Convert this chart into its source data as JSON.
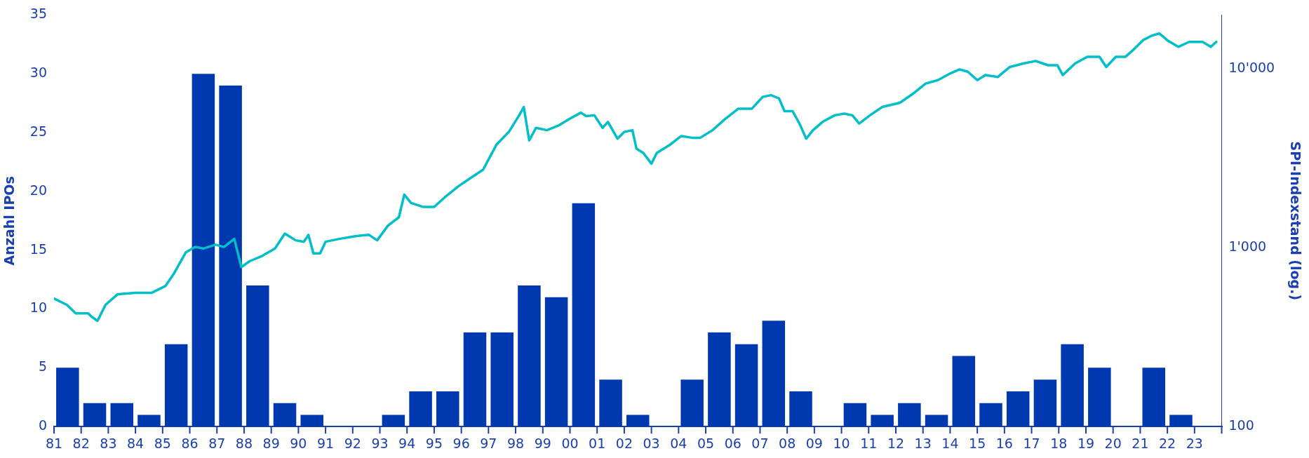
{
  "chart_data": {
    "type": "bar",
    "ylabel": "Anzahl IPOs",
    "y2label": "SPI-Indexstand (log.)",
    "x": [
      1981.5,
      1982.5,
      1983.5,
      1984.5,
      1985.5,
      1986.5,
      1987.5,
      1988.5,
      1989.5,
      1990.5,
      1991.5,
      1992.5,
      1993.5,
      1994.5,
      1995.5,
      1996.5,
      1997.5,
      1998.5,
      1999.5,
      2000.5,
      2001.5,
      2002.5,
      2003.5,
      2004.5,
      2005.5,
      2006.5,
      2007.5,
      2008.5,
      2009.5,
      2010.5,
      2011.5,
      2012.5,
      2013.5,
      2014.5,
      2015.5,
      2016.5,
      2017.5,
      2018.5,
      2019.5,
      2020.5,
      2021.5,
      2022.5,
      2023.5
    ],
    "xlim": [
      1981,
      2024
    ],
    "xticks": [
      {
        "value": 1981,
        "label": "81"
      },
      {
        "value": 1982,
        "label": "82"
      },
      {
        "value": 1983,
        "label": "83"
      },
      {
        "value": 1984,
        "label": "84"
      },
      {
        "value": 1985,
        "label": "85"
      },
      {
        "value": 1986,
        "label": "86"
      },
      {
        "value": 1987,
        "label": "87"
      },
      {
        "value": 1988,
        "label": "88"
      },
      {
        "value": 1989,
        "label": "89"
      },
      {
        "value": 1990,
        "label": "90"
      },
      {
        "value": 1991,
        "label": "91"
      },
      {
        "value": 1992,
        "label": "92"
      },
      {
        "value": 1993,
        "label": "93"
      },
      {
        "value": 1994,
        "label": "94"
      },
      {
        "value": 1995,
        "label": "95"
      },
      {
        "value": 1996,
        "label": "96"
      },
      {
        "value": 1997,
        "label": "97"
      },
      {
        "value": 1998,
        "label": "98"
      },
      {
        "value": 1999,
        "label": "99"
      },
      {
        "value": 2000,
        "label": "00"
      },
      {
        "value": 2001,
        "label": "01"
      },
      {
        "value": 2002,
        "label": "02"
      },
      {
        "value": 2003,
        "label": "03"
      },
      {
        "value": 2004,
        "label": "04"
      },
      {
        "value": 2005,
        "label": "05"
      },
      {
        "value": 2006,
        "label": "06"
      },
      {
        "value": 2007,
        "label": "07"
      },
      {
        "value": 2008,
        "label": "08"
      },
      {
        "value": 2009,
        "label": "09"
      },
      {
        "value": 2010,
        "label": "10"
      },
      {
        "value": 2011,
        "label": "11"
      },
      {
        "value": 2012,
        "label": "12"
      },
      {
        "value": 2013,
        "label": "13"
      },
      {
        "value": 2014,
        "label": "14"
      },
      {
        "value": 2015,
        "label": "15"
      },
      {
        "value": 2016,
        "label": "16"
      },
      {
        "value": 2017,
        "label": "17"
      },
      {
        "value": 2018,
        "label": "18"
      },
      {
        "value": 2019,
        "label": "19"
      },
      {
        "value": 2020,
        "label": "20"
      },
      {
        "value": 2021,
        "label": "21"
      },
      {
        "value": 2022,
        "label": "22"
      },
      {
        "value": 2023,
        "label": "23"
      },
      {
        "value": 2024,
        "label": null
      }
    ],
    "ylim": [
      0,
      35
    ],
    "yticks": [
      0,
      5,
      10,
      15,
      20,
      25,
      30,
      35
    ],
    "y2lim": [
      100,
      20000
    ],
    "y2ticks": [
      {
        "value": 100,
        "label": "100"
      },
      {
        "value": 1000,
        "label": "1'000"
      },
      {
        "value": 10000,
        "label": "10'000"
      }
    ],
    "log": "y2",
    "grid": false,
    "legend": false,
    "series": [
      {
        "color": "#0038b0",
        "values": [
          5,
          2,
          2,
          1,
          7,
          30,
          29,
          12,
          2,
          1,
          0,
          0,
          1,
          3,
          3,
          8,
          8,
          12,
          11,
          19,
          4,
          1,
          0,
          4,
          8,
          7,
          9,
          3,
          0,
          2,
          1,
          2,
          1,
          6,
          2,
          3,
          4,
          7,
          5,
          0,
          5,
          1,
          0
        ]
      },
      {
        "type": "line",
        "axis": "y2",
        "color": "#00bfc8",
        "marker": "none",
        "line_style": "solid",
        "x": [
          1981.0,
          1981.47,
          1981.8,
          1982.25,
          1982.4,
          1982.6,
          1982.9,
          1983.35,
          1984.0,
          1984.6,
          1985.1,
          1985.4,
          1985.85,
          1986.2,
          1986.5,
          1986.95,
          1987.26,
          1987.64,
          1987.9,
          1988.2,
          1988.67,
          1989.14,
          1989.5,
          1989.9,
          1990.2,
          1990.37,
          1990.55,
          1990.8,
          1991.0,
          1991.5,
          1992.1,
          1992.6,
          1992.9,
          1993.3,
          1993.7,
          1993.9,
          1994.15,
          1994.6,
          1995.0,
          1995.4,
          1995.9,
          1996.35,
          1996.8,
          1997.3,
          1997.75,
          1998.13,
          1998.3,
          1998.5,
          1998.75,
          1999.15,
          1999.6,
          1999.95,
          2000.4,
          2000.6,
          2000.9,
          2001.2,
          2001.4,
          2001.75,
          2002.0,
          2002.3,
          2002.45,
          2002.7,
          2003.0,
          2003.2,
          2003.7,
          2004.1,
          2004.5,
          2004.8,
          2005.25,
          2005.7,
          2006.2,
          2006.7,
          2007.1,
          2007.4,
          2007.7,
          2007.9,
          2008.2,
          2008.45,
          2008.7,
          2008.95,
          2009.3,
          2009.75,
          2010.1,
          2010.4,
          2010.65,
          2011.05,
          2011.5,
          2012.15,
          2012.6,
          2013.1,
          2013.55,
          2014.0,
          2014.35,
          2014.65,
          2015.0,
          2015.3,
          2015.75,
          2016.2,
          2016.7,
          2017.15,
          2017.6,
          2017.95,
          2018.15,
          2018.6,
          2019.05,
          2019.5,
          2019.75,
          2020.1,
          2020.45,
          2020.7,
          2021.1,
          2021.4,
          2021.7,
          2022.0,
          2022.4,
          2022.8,
          2023.3,
          2023.6,
          2023.8
        ],
        "values": [
          520,
          480,
          430,
          430,
          410,
          390,
          480,
          550,
          560,
          560,
          610,
          710,
          940,
          1010,
          990,
          1040,
          1010,
          1120,
          780,
          840,
          900,
          990,
          1200,
          1100,
          1080,
          1180,
          930,
          930,
          1080,
          1120,
          1160,
          1180,
          1100,
          1330,
          1480,
          1980,
          1780,
          1690,
          1690,
          1920,
          2210,
          2460,
          2730,
          3780,
          4440,
          5500,
          6120,
          3980,
          4680,
          4540,
          4840,
          5220,
          5690,
          5440,
          5500,
          4680,
          5050,
          4070,
          4440,
          4540,
          3580,
          3390,
          2950,
          3390,
          3780,
          4210,
          4120,
          4120,
          4540,
          5220,
          5990,
          5990,
          6970,
          7130,
          6830,
          5800,
          5800,
          4950,
          4070,
          4540,
          5050,
          5500,
          5620,
          5500,
          4950,
          5500,
          6120,
          6460,
          7200,
          8280,
          8650,
          9420,
          9930,
          9640,
          8650,
          9230,
          9000,
          10250,
          10710,
          11070,
          10480,
          10480,
          9230,
          10710,
          11670,
          11670,
          10250,
          11670,
          11670,
          12590,
          14450,
          15280,
          15790,
          14450,
          13270,
          14150,
          14150,
          13270,
          14150
        ]
      }
    ]
  }
}
